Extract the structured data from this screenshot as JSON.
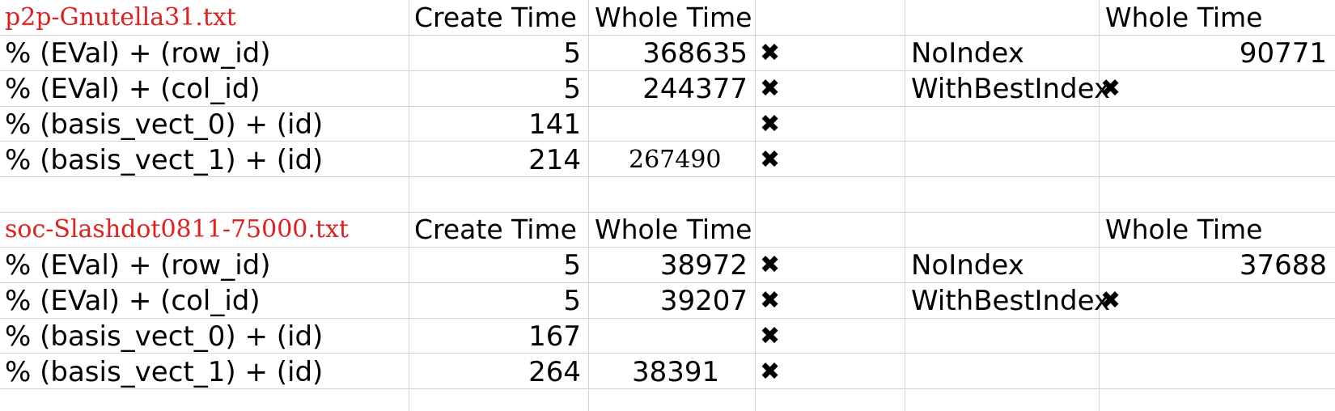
{
  "blocks": [
    {
      "file": "p2p-Gnutella31.txt",
      "header": {
        "create": "Create Time",
        "whole": "Whole Time",
        "right_whole": "Whole Time"
      },
      "rows": [
        {
          "label": " % (EVal) + (row_id)",
          "create": "5",
          "whole": "368635",
          "mark": "✖",
          "idx_label": "NoIndex",
          "idx_value": "90771"
        },
        {
          "label": "% (EVal) + (col_id)",
          "create": "5",
          "whole": "244377",
          "mark": "✖",
          "idx_label": "WithBestIndex",
          "idx_value": "✖"
        },
        {
          "label": "% (basis_vect_0) + (id)",
          "create": "141",
          "whole": "",
          "mark": "✖",
          "idx_label": "",
          "idx_value": ""
        },
        {
          "label": "% (basis_vect_1) + (id)",
          "create": "214",
          "whole": "267490",
          "mark": "✖",
          "idx_label": "",
          "idx_value": ""
        }
      ]
    },
    {
      "file": "soc-Slashdot0811-75000.txt",
      "header": {
        "create": "Create Time",
        "whole": "Whole Time",
        "right_whole": "Whole Time"
      },
      "rows": [
        {
          "label": " % (EVal) + (row_id)",
          "create": "5",
          "whole": "38972",
          "mark": "✖",
          "idx_label": "NoIndex",
          "idx_value": "37688"
        },
        {
          "label": "% (EVal) + (col_id)",
          "create": "5",
          "whole": "39207",
          "mark": "✖",
          "idx_label": "WithBestIndex",
          "idx_value": "✖"
        },
        {
          "label": "% (basis_vect_0) + (id)",
          "create": "167",
          "whole": "",
          "mark": "✖",
          "idx_label": "",
          "idx_value": ""
        },
        {
          "label": "% (basis_vect_1) + (id)",
          "create": "264",
          "whole": "38391",
          "mark": "✖",
          "idx_label": "",
          "idx_value": ""
        }
      ]
    }
  ]
}
